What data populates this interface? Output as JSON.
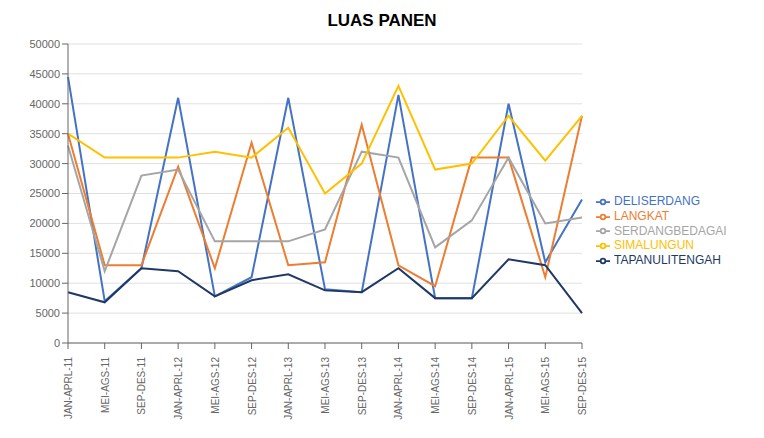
{
  "chart_data": {
    "type": "line",
    "title": "LUAS PANEN",
    "categories": [
      "JAN-APRL-11",
      "MEI-AGS-11",
      "SEP-DES-11",
      "JAN-APRL-12",
      "MEI-AGS-12",
      "SEP-DES-12",
      "JAN-APRL-13",
      "MEI-AGS-13",
      "SEP-DES-13",
      "JAN-APRL-14",
      "MEI-AGS-14",
      "SEP-DES-14",
      "JAN-APRL-15",
      "MEI-AGS-15",
      "SEP-DES-15"
    ],
    "series": [
      {
        "name": "DELISERDANG",
        "color": "#4472C4",
        "values": [
          44500,
          7000,
          12500,
          41000,
          7800,
          11000,
          41000,
          9000,
          8500,
          41500,
          7500,
          7500,
          40000,
          13500,
          24000
        ]
      },
      {
        "name": "LANGKAT",
        "color": "#ED7D31",
        "values": [
          35000,
          13000,
          13000,
          29500,
          12500,
          33500,
          13000,
          13500,
          36500,
          13000,
          9500,
          31000,
          31000,
          11000,
          38000
        ]
      },
      {
        "name": "SERDANGBEDAGAI",
        "color": "#A5A5A5",
        "values": [
          33000,
          12000,
          28000,
          29000,
          17000,
          17000,
          17000,
          19000,
          32000,
          31000,
          16000,
          20500,
          31000,
          20000,
          21000
        ]
      },
      {
        "name": "SIMALUNGUN",
        "color": "#FFC000",
        "values": [
          35000,
          31000,
          31000,
          31000,
          32000,
          31000,
          36000,
          25000,
          30000,
          43000,
          29000,
          30000,
          38000,
          30500,
          38000
        ]
      },
      {
        "name": "TAPANULITENGAH",
        "color": "#203864",
        "values": [
          8500,
          6800,
          12500,
          12000,
          7800,
          10500,
          11500,
          8800,
          8500,
          12500,
          7500,
          7500,
          14000,
          13000,
          5000
        ]
      }
    ],
    "ylim": [
      0,
      50000
    ],
    "yticks": [
      0,
      5000,
      10000,
      15000,
      20000,
      25000,
      30000,
      35000,
      40000,
      45000,
      50000
    ],
    "grid": true,
    "legend": "right"
  }
}
